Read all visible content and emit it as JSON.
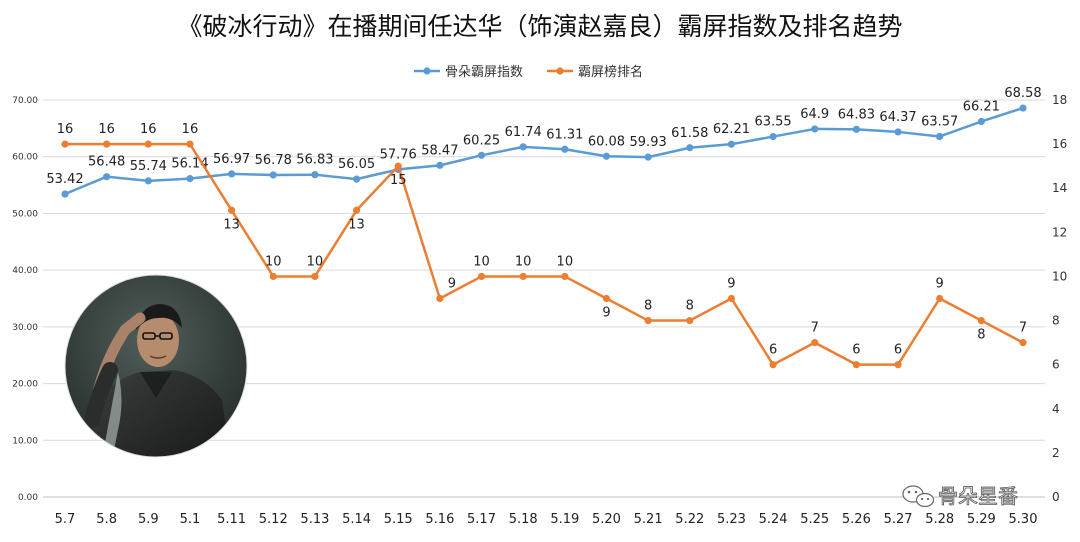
{
  "chart_data": {
    "type": "line",
    "title": "《破冰行动》在播期间任达华（饰演赵嘉良）霸屏指数及排名趋势",
    "categories": [
      "5.7",
      "5.8",
      "5.9",
      "5.1",
      "5.11",
      "5.12",
      "5.13",
      "5.14",
      "5.15",
      "5.16",
      "5.17",
      "5.18",
      "5.19",
      "5.20",
      "5.21",
      "5.22",
      "5.23",
      "5.24",
      "5.25",
      "5.26",
      "5.27",
      "5.28",
      "5.29",
      "5.30"
    ],
    "series": [
      {
        "name": "骨朵霸屏指数",
        "axis": "left",
        "color": "#5B9BD5",
        "values": [
          53.42,
          56.48,
          55.74,
          56.14,
          56.97,
          56.78,
          56.83,
          56.05,
          57.76,
          58.47,
          60.25,
          61.74,
          61.31,
          60.08,
          59.93,
          61.58,
          62.21,
          63.55,
          64.9,
          64.83,
          64.37,
          63.57,
          66.21,
          68.58
        ],
        "labels": [
          "53.42",
          "56.48",
          "55.74",
          "56.14",
          "56.97",
          "56.78",
          "56.83",
          "56.05",
          "57.76",
          "58.47",
          "60.25",
          "61.74",
          "61.31",
          "60.08",
          "59.93",
          "61.58",
          "62.21",
          "63.55",
          "64.9",
          "64.83",
          "64.37",
          "63.57",
          "66.21",
          "68.58"
        ]
      },
      {
        "name": "霸屏榜排名",
        "axis": "right",
        "color": "#ED7D31",
        "values": [
          16,
          16,
          16,
          16,
          13,
          10,
          10,
          13,
          15,
          9,
          10,
          10,
          10,
          9,
          8,
          8,
          9,
          6,
          7,
          6,
          6,
          9,
          8,
          7
        ],
        "labels": [
          "16",
          "16",
          "16",
          "16",
          "13",
          "10",
          "10",
          "13",
          "15",
          "9",
          "10",
          "10",
          "10",
          "9",
          "8",
          "8",
          "9",
          "6",
          "7",
          "6",
          "6",
          "9",
          "8",
          "7"
        ]
      }
    ],
    "y_left": {
      "min": 0,
      "max": 70,
      "ticks": [
        "0.00",
        "10.00",
        "20.00",
        "30.00",
        "40.00",
        "50.00",
        "60.00",
        "70.00"
      ]
    },
    "y_right": {
      "min": 0,
      "max": 18,
      "ticks": [
        "0",
        "2",
        "4",
        "6",
        "8",
        "10",
        "12",
        "14",
        "16",
        "18"
      ]
    },
    "grid": true,
    "legend_position": "top-center"
  },
  "watermark": {
    "text": "骨朵星番",
    "icon": "wechat-icon"
  },
  "photo": {
    "icon": "actor-portrait"
  }
}
